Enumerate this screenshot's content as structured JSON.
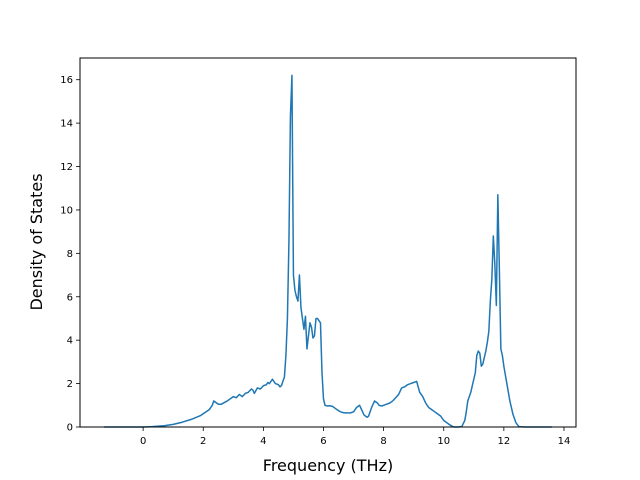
{
  "chart_data": {
    "type": "line",
    "title": "",
    "xlabel": "Frequency (THz)",
    "ylabel": "Density of States",
    "xlim": [
      -2.1,
      14.4
    ],
    "ylim": [
      0,
      17
    ],
    "xticks": [
      0,
      2,
      4,
      6,
      8,
      10,
      12,
      14
    ],
    "yticks": [
      0,
      2,
      4,
      6,
      8,
      10,
      12,
      14,
      16
    ],
    "grid": false,
    "legend": "none",
    "series": [
      {
        "color": "#1f77b4",
        "x": [
          -1.3,
          -1.0,
          -0.5,
          0.0,
          0.3,
          0.7,
          1.0,
          1.3,
          1.6,
          1.9,
          2.2,
          2.3,
          2.35,
          2.4,
          2.5,
          2.6,
          2.8,
          2.9,
          3.0,
          3.1,
          3.2,
          3.3,
          3.4,
          3.5,
          3.6,
          3.65,
          3.7,
          3.8,
          3.9,
          4.0,
          4.1,
          4.15,
          4.2,
          4.3,
          4.4,
          4.5,
          4.55,
          4.6,
          4.65,
          4.7,
          4.75,
          4.8,
          4.85,
          4.9,
          4.95,
          5.0,
          5.05,
          5.1,
          5.15,
          5.2,
          5.25,
          5.3,
          5.35,
          5.4,
          5.45,
          5.5,
          5.55,
          5.6,
          5.65,
          5.7,
          5.75,
          5.8,
          5.85,
          5.9,
          5.95,
          6.0,
          6.05,
          6.1,
          6.15,
          6.2,
          6.3,
          6.4,
          6.5,
          6.6,
          6.7,
          6.8,
          6.9,
          7.0,
          7.1,
          7.2,
          7.25,
          7.3,
          7.35,
          7.4,
          7.45,
          7.5,
          7.6,
          7.7,
          7.8,
          7.85,
          7.9,
          7.95,
          8.0,
          8.1,
          8.2,
          8.3,
          8.4,
          8.5,
          8.6,
          8.7,
          8.8,
          8.9,
          9.0,
          9.1,
          9.2,
          9.3,
          9.35,
          9.4,
          9.45,
          9.5,
          9.6,
          9.7,
          9.8,
          9.9,
          10.0,
          10.1,
          10.2,
          10.3,
          10.35,
          10.4,
          10.5,
          10.6,
          10.7,
          10.75,
          10.8,
          10.9,
          10.95,
          11.0,
          11.05,
          11.1,
          11.15,
          11.2,
          11.25,
          11.3,
          11.35,
          11.4,
          11.45,
          11.5,
          11.55,
          11.6,
          11.65,
          11.7,
          11.75,
          11.8,
          11.85,
          11.9,
          11.95,
          12.0,
          12.1,
          12.2,
          12.3,
          12.4,
          12.5,
          12.7,
          13.0,
          13.3,
          13.6
        ],
        "y": [
          0,
          0,
          0,
          0,
          0.02,
          0.06,
          0.12,
          0.22,
          0.35,
          0.52,
          0.8,
          1.0,
          1.2,
          1.15,
          1.05,
          1.05,
          1.2,
          1.3,
          1.4,
          1.35,
          1.5,
          1.4,
          1.55,
          1.6,
          1.75,
          1.7,
          1.55,
          1.8,
          1.75,
          1.9,
          1.95,
          2.05,
          2.0,
          2.2,
          2.0,
          1.95,
          1.85,
          1.9,
          2.1,
          2.3,
          3.3,
          5.0,
          8.5,
          14.3,
          16.2,
          7.0,
          6.3,
          6.0,
          5.8,
          7.0,
          5.5,
          5.0,
          4.5,
          5.1,
          3.6,
          4.2,
          4.8,
          4.6,
          4.1,
          4.2,
          5.0,
          5.0,
          4.9,
          4.8,
          2.5,
          1.3,
          1.0,
          0.98,
          0.97,
          0.98,
          0.95,
          0.85,
          0.75,
          0.68,
          0.65,
          0.65,
          0.65,
          0.7,
          0.9,
          1.0,
          0.85,
          0.7,
          0.55,
          0.5,
          0.45,
          0.5,
          0.9,
          1.2,
          1.1,
          1.0,
          0.98,
          0.97,
          1.0,
          1.05,
          1.1,
          1.2,
          1.35,
          1.5,
          1.8,
          1.85,
          1.95,
          2.0,
          2.05,
          2.1,
          1.6,
          1.4,
          1.25,
          1.1,
          1.0,
          0.9,
          0.8,
          0.7,
          0.6,
          0.5,
          0.3,
          0.2,
          0.1,
          0.02,
          0.0,
          0.0,
          0.0,
          0.02,
          0.3,
          0.7,
          1.2,
          1.6,
          1.9,
          2.2,
          2.5,
          3.3,
          3.5,
          3.4,
          2.8,
          2.9,
          3.2,
          3.5,
          3.9,
          4.4,
          5.8,
          6.8,
          8.8,
          7.5,
          5.6,
          10.7,
          7.3,
          3.6,
          3.3,
          2.8,
          2.0,
          1.2,
          0.6,
          0.2,
          0.02,
          0.0,
          0.0,
          0.0,
          0.0
        ]
      }
    ]
  }
}
